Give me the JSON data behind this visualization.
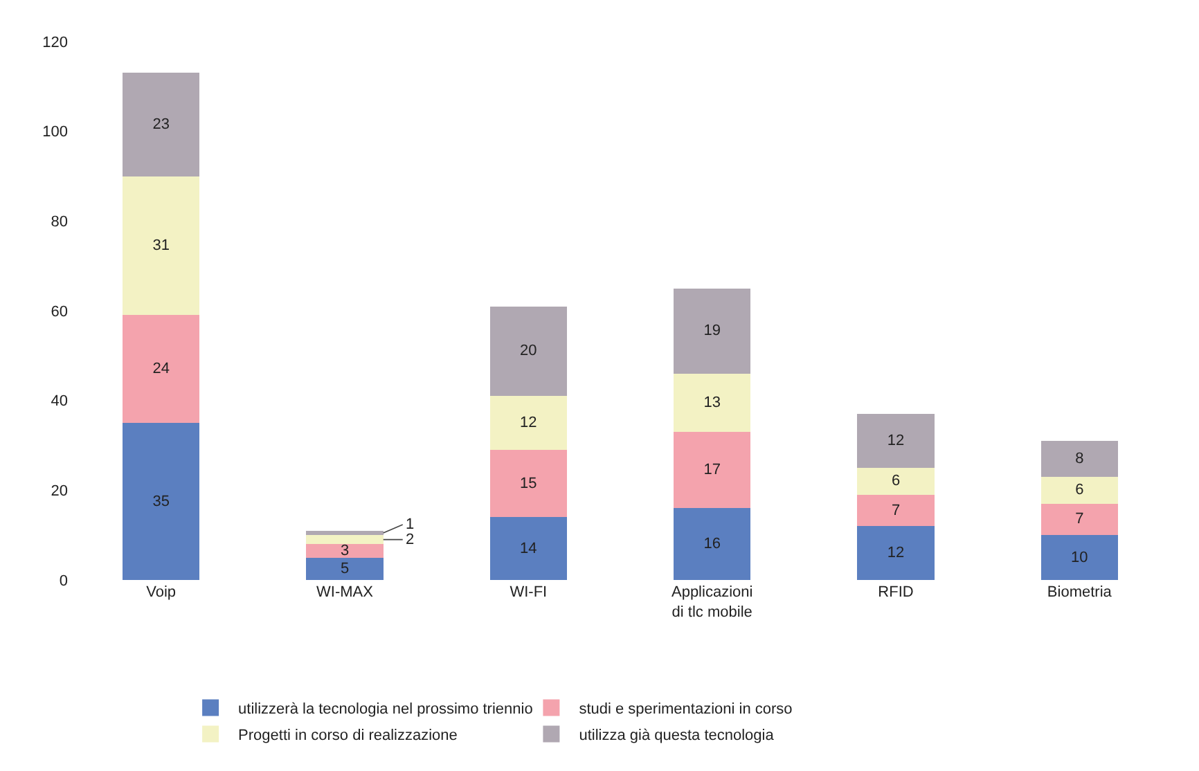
{
  "chart_data": {
    "type": "bar",
    "stacked": true,
    "data_labels": true,
    "grid": false,
    "legend": "bottom",
    "categories": [
      "Voip",
      "WI-MAX",
      "WI-FI",
      "Applicazioni di tlc mobile",
      "RFID",
      "Biometria"
    ],
    "ylim": [
      0,
      120
    ],
    "yticks": [
      0,
      20,
      40,
      60,
      80,
      100,
      120
    ],
    "series": [
      {
        "name": "utilizzerà la tecnologia nel prossimo triennio",
        "color": "#5b7fc0",
        "values": [
          35,
          5,
          14,
          16,
          12,
          10
        ]
      },
      {
        "name": "studi e sperimentazioni in corso",
        "color": "#f4a3ad",
        "values": [
          24,
          3,
          15,
          17,
          7,
          7
        ]
      },
      {
        "name": "Progetti in corso di realizzazione",
        "color": "#f3f2c4",
        "values": [
          31,
          2,
          12,
          13,
          6,
          6
        ]
      },
      {
        "name": "utilizza già questa tecnologia",
        "color": "#b0a8b2",
        "values": [
          23,
          1,
          20,
          19,
          12,
          8
        ]
      }
    ]
  }
}
